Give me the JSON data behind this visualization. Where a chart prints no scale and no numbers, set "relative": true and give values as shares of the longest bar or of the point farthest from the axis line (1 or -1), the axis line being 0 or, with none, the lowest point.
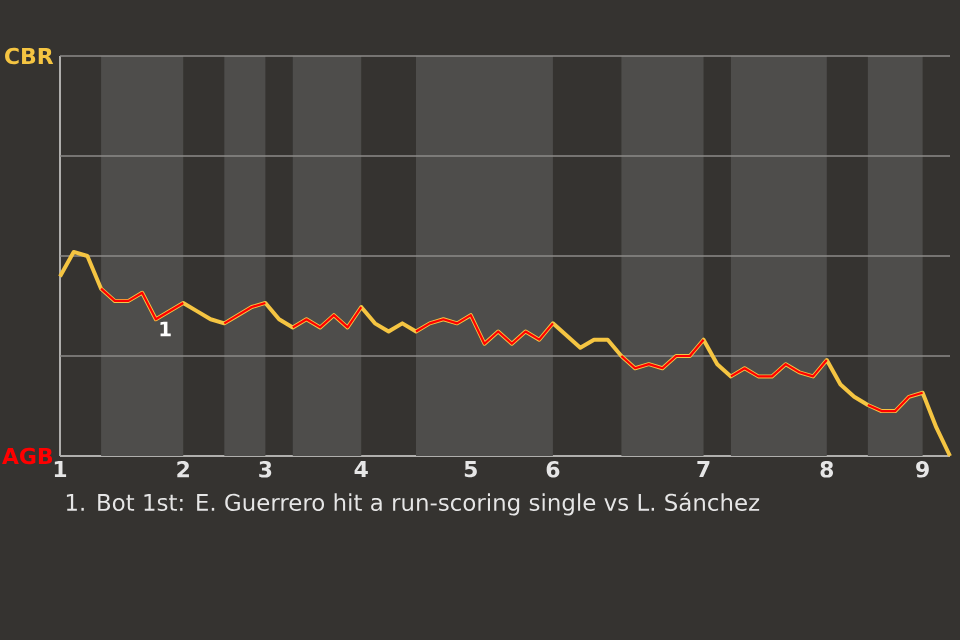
{
  "chart_data": {
    "type": "line",
    "relative": true,
    "categories": [
      "1",
      null,
      null,
      null,
      null,
      null,
      null,
      null,
      null,
      "2",
      null,
      null,
      null,
      null,
      null,
      "3",
      null,
      null,
      null,
      null,
      null,
      null,
      "4",
      null,
      null,
      null,
      null,
      null,
      null,
      null,
      "5",
      null,
      null,
      null,
      null,
      null,
      "6",
      null,
      null,
      null,
      null,
      null,
      null,
      null,
      null,
      null,
      null,
      "7",
      null,
      null,
      null,
      null,
      null,
      null,
      null,
      null,
      "8",
      null,
      null,
      null,
      null,
      null,
      null,
      "9",
      null,
      null
    ],
    "series": [
      {
        "name": "CBR",
        "color": "#f5c542",
        "values": [
          0.88,
          1,
          0.98,
          0.82,
          0.76,
          0.76,
          0.8,
          0.67,
          0.71,
          0.75,
          0.71,
          0.67,
          0.65,
          0.69,
          0.73,
          0.75,
          0.67,
          0.63,
          0.67,
          0.63,
          0.69,
          0.63,
          0.73,
          0.65,
          0.61,
          0.65,
          0.61,
          0.65,
          0.67,
          0.65,
          0.69,
          0.55,
          0.61,
          0.55,
          0.61,
          0.57,
          0.65,
          0.59,
          0.53,
          0.57,
          0.57,
          0.49,
          0.43,
          0.45,
          0.43,
          0.49,
          0.49,
          0.57,
          0.45,
          0.39,
          0.43,
          0.39,
          0.39,
          0.45,
          0.41,
          0.39,
          0.47,
          0.35,
          0.29,
          0.25,
          0.22,
          0.22,
          0.29,
          0.31,
          0.14,
          0
        ]
      },
      {
        "name": "AGB",
        "color": "#ff0000",
        "values": [
          null,
          null,
          null,
          0.82,
          0.76,
          0.76,
          0.8,
          0.67,
          0.71,
          0.75,
          null,
          null,
          0.65,
          0.69,
          0.73,
          0.75,
          null,
          0.63,
          0.67,
          0.63,
          0.69,
          0.63,
          0.73,
          null,
          null,
          null,
          0.61,
          0.65,
          0.67,
          0.65,
          0.69,
          0.55,
          0.61,
          0.55,
          0.61,
          0.57,
          0.65,
          null,
          null,
          null,
          null,
          0.49,
          0.43,
          0.45,
          0.43,
          0.49,
          0.49,
          0.57,
          null,
          0.39,
          0.43,
          0.39,
          0.39,
          0.45,
          0.41,
          0.39,
          0.47,
          null,
          null,
          0.25,
          0.22,
          0.22,
          0.29,
          0.31,
          null,
          null
        ]
      }
    ],
    "ref_lines": [
      {
        "axis": "y",
        "value": 0.49,
        "color": "#8c8b89"
      },
      {
        "axis": "y",
        "value": 0.98,
        "color": "#8c8b89"
      },
      {
        "axis": "y",
        "value": 1.47,
        "color": "#8c8b89"
      },
      {
        "axis": "y",
        "value": 1.96,
        "color": "#8c8b89"
      }
    ],
    "marker": "none",
    "line_style": "solid",
    "annotations": [
      {
        "text": "1",
        "y": 0.67
      },
      "1. Bot 1st: E. Guerrero hit a run-scoring single vs L. Sánchez"
    ]
  }
}
